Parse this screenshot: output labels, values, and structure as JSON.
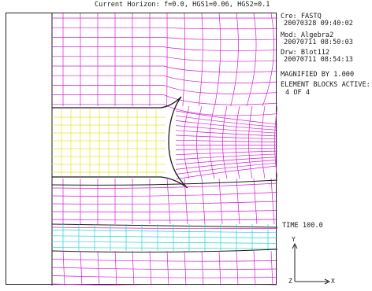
{
  "header": {
    "title": "Current Horizon: f=0.0, HGS1=0.06, HGS2=0.1"
  },
  "info": {
    "cre_label": "Cre: FASTQ",
    "cre_stamp": "20070328  09:40:02",
    "mod_label": "Mod: Algebra2",
    "mod_stamp": "20070711  08:50:03",
    "drw_label": "Drw: Blot112",
    "drw_stamp": "20070711  08:54:13",
    "magnified": "MAGNIFIED BY 1.000",
    "blocks_title": "ELEMENT BLOCKS ACTIVE:",
    "blocks_count": "4 OF 4",
    "time": "TIME  100.0"
  },
  "axes": {
    "y_label": "Y",
    "x_label": "X",
    "z_label": "Z"
  },
  "colors": {
    "frame": "#222222",
    "rock_mesh": "#d21ed2",
    "room_mesh": "#e6e628",
    "layer_mesh": "#28d2d2",
    "block_boundary": "#1a1a1a"
  }
}
